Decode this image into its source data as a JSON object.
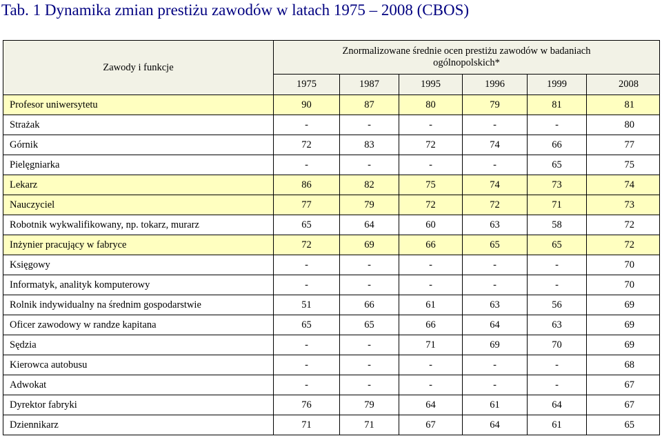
{
  "title": "Tab. 1  Dynamika zmian prestiżu zawodów w latach 1975 – 2008 (CBOS)",
  "header": {
    "corner_label": "Zawody i funkcje",
    "group_label_line1": "Znormalizowane średnie ocen prestiżu zawodów w  badaniach",
    "group_label_line2": "ogólnopolskich*",
    "years": [
      "1975",
      "1987",
      "1995",
      "1996",
      "1999",
      "2008"
    ]
  },
  "colors": {
    "title": "#000080",
    "header_bg": "#f2f2e6",
    "highlight_row_bg": "#ffffc0"
  },
  "rows": [
    {
      "name": "Profesor uniwersytetu",
      "values": [
        "90",
        "87",
        "80",
        "79",
        "81",
        "81"
      ],
      "highlight": true
    },
    {
      "name": "Strażak",
      "values": [
        "-",
        "-",
        "-",
        "-",
        "-",
        "80"
      ],
      "highlight": false
    },
    {
      "name": "Górnik",
      "values": [
        "72",
        "83",
        "72",
        "74",
        "66",
        "77"
      ],
      "highlight": false
    },
    {
      "name": "Pielęgniarka",
      "values": [
        "-",
        "-",
        "-",
        "-",
        "65",
        "75"
      ],
      "highlight": false
    },
    {
      "name": "Lekarz",
      "values": [
        "86",
        "82",
        "75",
        "74",
        "73",
        "74"
      ],
      "highlight": true
    },
    {
      "name": "Nauczyciel",
      "values": [
        "77",
        "79",
        "72",
        "72",
        "71",
        "73"
      ],
      "highlight": true
    },
    {
      "name": "Robotnik wykwalifikowany, np. tokarz, murarz",
      "values": [
        "65",
        "64",
        "60",
        "63",
        "58",
        "72"
      ],
      "highlight": false
    },
    {
      "name": "Inżynier pracujący w fabryce",
      "values": [
        "72",
        "69",
        "66",
        "65",
        "65",
        "72"
      ],
      "highlight": true
    },
    {
      "name": "Księgowy",
      "values": [
        "-",
        "-",
        "-",
        "-",
        "-",
        "70"
      ],
      "highlight": false
    },
    {
      "name": "Informatyk, analityk komputerowy",
      "values": [
        "-",
        "-",
        "-",
        "-",
        "-",
        "70"
      ],
      "highlight": false
    },
    {
      "name": "Rolnik indywidualny na średnim gospodarstwie",
      "values": [
        "51",
        "66",
        "61",
        "63",
        "56",
        "69"
      ],
      "highlight": false
    },
    {
      "name": "Oficer zawodowy w randze kapitana",
      "values": [
        "65",
        "65",
        "66",
        "64",
        "63",
        "69"
      ],
      "highlight": false
    },
    {
      "name": "Sędzia",
      "values": [
        "-",
        "-",
        "71",
        "69",
        "70",
        "69"
      ],
      "highlight": false
    },
    {
      "name": "Kierowca autobusu",
      "values": [
        "-",
        "-",
        "-",
        "-",
        "-",
        "68"
      ],
      "highlight": false
    },
    {
      "name": "Adwokat",
      "values": [
        "-",
        "-",
        "-",
        "-",
        "-",
        "67"
      ],
      "highlight": false
    },
    {
      "name": "Dyrektor fabryki",
      "values": [
        "76",
        "79",
        "64",
        "61",
        "64",
        "67"
      ],
      "highlight": false
    },
    {
      "name": "Dziennikarz",
      "values": [
        "71",
        "71",
        "67",
        "64",
        "61",
        "65"
      ],
      "highlight": false
    }
  ]
}
